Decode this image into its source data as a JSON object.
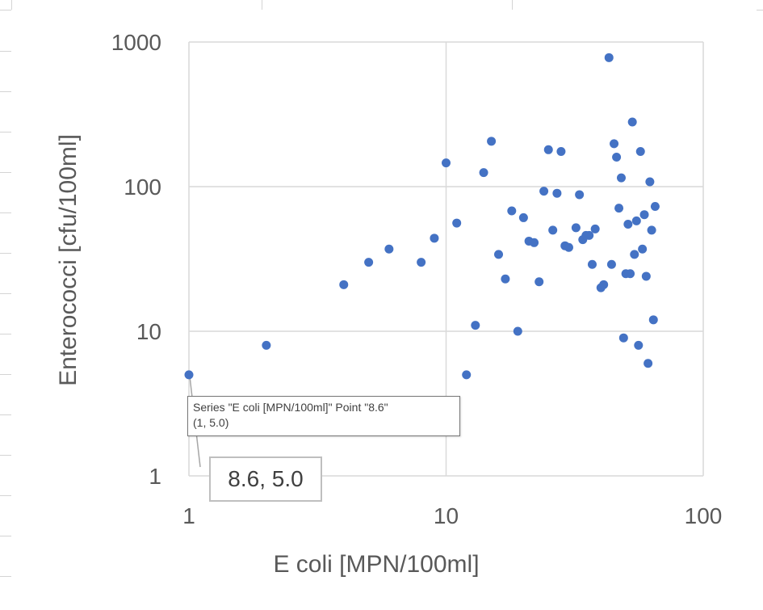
{
  "colors": {
    "series": "#4472c4",
    "gridline": "#d9d9d9",
    "text": "#595959",
    "sheet_grid": "#d4d4d4"
  },
  "tooltip": {
    "line1": "Series \"E coli [MPN/100ml]\" Point \"8.6\"",
    "line2": "(1, 5.0)"
  },
  "data_label": "8.6, 5.0",
  "chart_data": {
    "type": "scatter",
    "title": "",
    "xlabel": "E coli [MPN/100ml]",
    "ylabel": "Enterococci [cfu/100ml]",
    "xscale": "log",
    "yscale": "log",
    "xlim": [
      1,
      100
    ],
    "ylim": [
      1,
      1000
    ],
    "xticks": [
      "1",
      "10",
      "100"
    ],
    "yticks": [
      "1",
      "10",
      "100",
      "1000"
    ],
    "grid": true,
    "legend": "none",
    "series": [
      {
        "points": [
          [
            1,
            5
          ],
          [
            2,
            8
          ],
          [
            4,
            21
          ],
          [
            5,
            30
          ],
          [
            6,
            37
          ],
          [
            8,
            30
          ],
          [
            9,
            44
          ],
          [
            10,
            146
          ],
          [
            11,
            56
          ],
          [
            12,
            5
          ],
          [
            13,
            11
          ],
          [
            14,
            125
          ],
          [
            15,
            206
          ],
          [
            16,
            34
          ],
          [
            17,
            23
          ],
          [
            18,
            68
          ],
          [
            19,
            10
          ],
          [
            20,
            61
          ],
          [
            21,
            42
          ],
          [
            22,
            41
          ],
          [
            23,
            22
          ],
          [
            24,
            93
          ],
          [
            25,
            180
          ],
          [
            26,
            50
          ],
          [
            27,
            90
          ],
          [
            28,
            175
          ],
          [
            29,
            39
          ],
          [
            30,
            38
          ],
          [
            32,
            52
          ],
          [
            33,
            88
          ],
          [
            34,
            43
          ],
          [
            35,
            46
          ],
          [
            36,
            46
          ],
          [
            37,
            29
          ],
          [
            38,
            51
          ],
          [
            40,
            20
          ],
          [
            41,
            21
          ],
          [
            43,
            780
          ],
          [
            44,
            29
          ],
          [
            45,
            198
          ],
          [
            46,
            160
          ],
          [
            47,
            71
          ],
          [
            48,
            115
          ],
          [
            49,
            9
          ],
          [
            50,
            25
          ],
          [
            51,
            55
          ],
          [
            52,
            25
          ],
          [
            53,
            280
          ],
          [
            54,
            34
          ],
          [
            55,
            58
          ],
          [
            56,
            8
          ],
          [
            57,
            175
          ],
          [
            58,
            37
          ],
          [
            59,
            64
          ],
          [
            60,
            24
          ],
          [
            61,
            6
          ],
          [
            62,
            108
          ],
          [
            63,
            50
          ],
          [
            64,
            12
          ],
          [
            65,
            73
          ]
        ]
      }
    ]
  }
}
